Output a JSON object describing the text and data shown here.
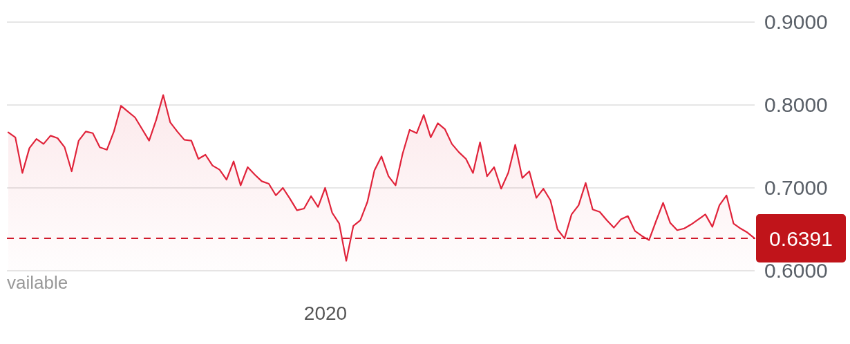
{
  "chart_data": {
    "type": "area",
    "categories": [
      null,
      null,
      null,
      null,
      null,
      null,
      null,
      null,
      null,
      null,
      null,
      null,
      null,
      null,
      null,
      null,
      null,
      null,
      null,
      null,
      null,
      null,
      null,
      null,
      null,
      null,
      null,
      null,
      null,
      null,
      null,
      null,
      null,
      null,
      null,
      null,
      null,
      null,
      null,
      null,
      null,
      null,
      null,
      null,
      null,
      "2020",
      null,
      null,
      null,
      null,
      null,
      null,
      null,
      null,
      null,
      null,
      null,
      null,
      null,
      null,
      null,
      null,
      null,
      null,
      null,
      null,
      null,
      null,
      null,
      null,
      null,
      null,
      null,
      null,
      null,
      null,
      null,
      null,
      null,
      null,
      null,
      null,
      null,
      null,
      null,
      null,
      null,
      null,
      null,
      null,
      null,
      null,
      null,
      null,
      null,
      null,
      null,
      null,
      null,
      null,
      null,
      null,
      null,
      null,
      null,
      null,
      null
    ],
    "series": [
      {
        "color": "#e0233a",
        "values": [
          0.767,
          0.761,
          0.718,
          0.748,
          0.759,
          0.753,
          0.763,
          0.76,
          0.749,
          0.72,
          0.757,
          0.768,
          0.766,
          0.749,
          0.746,
          0.768,
          0.799,
          0.792,
          0.785,
          0.771,
          0.757,
          0.782,
          0.812,
          0.779,
          0.768,
          0.758,
          0.757,
          0.735,
          0.74,
          0.727,
          0.722,
          0.71,
          0.732,
          0.703,
          0.725,
          0.716,
          0.708,
          0.705,
          0.691,
          0.7,
          0.687,
          0.673,
          0.675,
          0.69,
          0.677,
          0.7,
          0.67,
          0.657,
          0.612,
          0.654,
          0.661,
          0.683,
          0.721,
          0.738,
          0.714,
          0.703,
          0.741,
          0.77,
          0.766,
          0.788,
          0.761,
          0.778,
          0.771,
          0.753,
          0.743,
          0.735,
          0.718,
          0.755,
          0.714,
          0.725,
          0.699,
          0.718,
          0.752,
          0.712,
          0.72,
          0.688,
          0.699,
          0.685,
          0.65,
          0.639,
          0.668,
          0.679,
          0.706,
          0.674,
          0.671,
          0.661,
          0.652,
          0.662,
          0.666,
          0.648,
          0.642,
          0.637,
          0.66,
          0.682,
          0.658,
          0.649,
          0.651,
          0.656,
          0.662,
          0.668,
          0.653,
          0.679,
          0.691,
          0.657,
          0.651,
          0.646,
          0.6391
        ]
      }
    ],
    "ylim": [
      0.6,
      0.9
    ],
    "yticks": [
      {
        "value": 0.6,
        "label": "0.6000"
      },
      {
        "value": 0.7,
        "label": "0.7000"
      },
      {
        "value": 0.8,
        "label": "0.8000"
      },
      {
        "value": 0.9,
        "label": "0.9000"
      }
    ],
    "grid": "y",
    "ref_lines": [
      {
        "axis": "y",
        "value": 0.6391,
        "label": "0.6391",
        "color": "#d0192b",
        "line_style": "dashed"
      }
    ],
    "annotations": [
      "vailable"
    ]
  }
}
